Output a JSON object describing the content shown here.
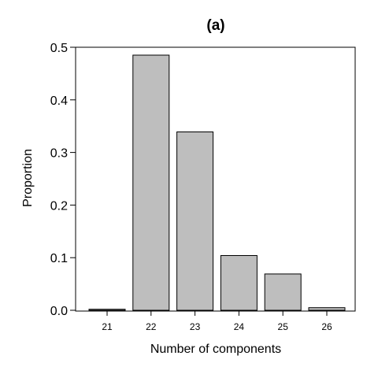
{
  "chart_data": {
    "type": "bar",
    "title": "(a)",
    "xlabel": "Number of components",
    "ylabel": "Proportion",
    "categories": [
      "21",
      "22",
      "23",
      "24",
      "25",
      "26"
    ],
    "values": [
      0.002,
      0.485,
      0.339,
      0.104,
      0.069,
      0.005
    ],
    "ylim": [
      0,
      0.5
    ],
    "yticks": [
      "0.0",
      "0.1",
      "0.2",
      "0.3",
      "0.4",
      "0.5"
    ],
    "bar_color": "#bebebe",
    "grid": false
  }
}
